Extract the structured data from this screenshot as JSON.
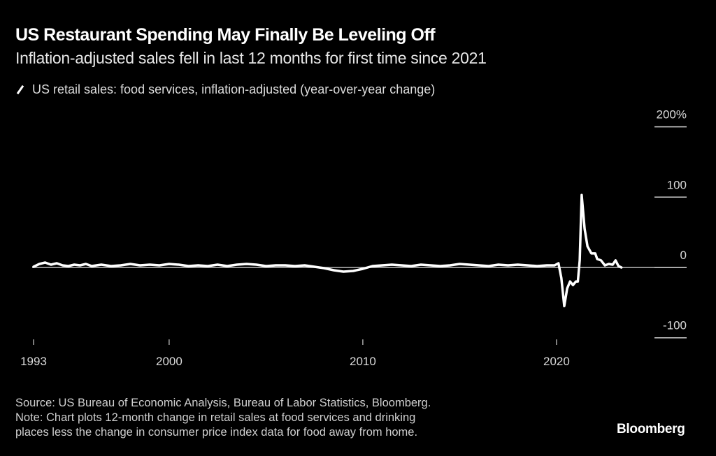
{
  "header": {
    "title": "US Restaurant Spending May Finally Be Leveling Off",
    "subtitle": "Inflation-adjusted sales fell in last 12 months for first time since 2021"
  },
  "legend": {
    "label": "US retail sales: food services, inflation-adjusted (year-over-year change)",
    "color": "#ffffff"
  },
  "footer": {
    "source": "Source: US Bureau of Economic Analysis, Bureau of Labor Statistics, Bloomberg.",
    "note_line1": "Note: Chart plots 12-month change in retail sales at food services and drinking",
    "note_line2": "places less the change in consumer price index data for food away from home.",
    "brand": "Bloomberg"
  },
  "chart_data": {
    "type": "line",
    "title": "US Restaurant Spending May Finally Be Leveling Off",
    "subtitle": "Inflation-adjusted sales fell in last 12 months for first time since 2021",
    "xlabel": "",
    "ylabel": "",
    "x_ticks": [
      {
        "value": 1993,
        "label": "1993"
      },
      {
        "value": 2000,
        "label": "2000"
      },
      {
        "value": 2010,
        "label": "2010"
      },
      {
        "value": 2020,
        "label": "2020"
      }
    ],
    "y_ticks": [
      {
        "value": 200,
        "label": "200%"
      },
      {
        "value": 100,
        "label": "100"
      },
      {
        "value": 0,
        "label": "0"
      },
      {
        "value": -100,
        "label": "-100"
      }
    ],
    "xlim": [
      1993,
      2023.6
    ],
    "ylim": [
      -100,
      200
    ],
    "y_axis_position": "right",
    "grid": false,
    "legend_position": "top-left",
    "series": [
      {
        "name": "US retail sales: food services, inflation-adjusted (year-over-year change)",
        "color": "#ffffff",
        "x": [
          1993.0,
          1993.3,
          1993.6,
          1993.9,
          1994.2,
          1994.5,
          1994.8,
          1995.1,
          1995.4,
          1995.7,
          1996.0,
          1996.5,
          1997.0,
          1997.5,
          1998.0,
          1998.5,
          1999.0,
          1999.5,
          2000.0,
          2000.5,
          2001.0,
          2001.5,
          2002.0,
          2002.5,
          2003.0,
          2003.5,
          2004.0,
          2004.5,
          2005.0,
          2005.5,
          2006.0,
          2006.5,
          2007.0,
          2007.5,
          2008.0,
          2008.5,
          2009.0,
          2009.5,
          2010.0,
          2010.5,
          2011.0,
          2011.5,
          2012.0,
          2012.5,
          2013.0,
          2013.5,
          2014.0,
          2014.5,
          2015.0,
          2015.5,
          2016.0,
          2016.5,
          2017.0,
          2017.5,
          2018.0,
          2018.5,
          2019.0,
          2019.5,
          2019.9,
          2020.1,
          2020.25,
          2020.4,
          2020.55,
          2020.7,
          2020.85,
          2021.0,
          2021.1,
          2021.2,
          2021.3,
          2021.45,
          2021.6,
          2021.8,
          2022.0,
          2022.1,
          2022.3,
          2022.5,
          2022.7,
          2022.9,
          2023.05,
          2023.2,
          2023.35
        ],
        "values": [
          1,
          5,
          7,
          4,
          6,
          3,
          2,
          4,
          3,
          5,
          2,
          4,
          2,
          3,
          5,
          3,
          4,
          3,
          5,
          4,
          2,
          3,
          2,
          4,
          2,
          4,
          5,
          4,
          2,
          3,
          3,
          2,
          3,
          1,
          -1,
          -4,
          -6,
          -5,
          -2,
          2,
          3,
          4,
          3,
          2,
          4,
          3,
          2,
          3,
          5,
          4,
          3,
          2,
          4,
          3,
          4,
          3,
          2,
          3,
          3,
          6,
          -15,
          -55,
          -30,
          -20,
          -25,
          -20,
          -20,
          10,
          103,
          55,
          30,
          20,
          20,
          12,
          10,
          3,
          5,
          4,
          10,
          2,
          0
        ]
      }
    ]
  }
}
